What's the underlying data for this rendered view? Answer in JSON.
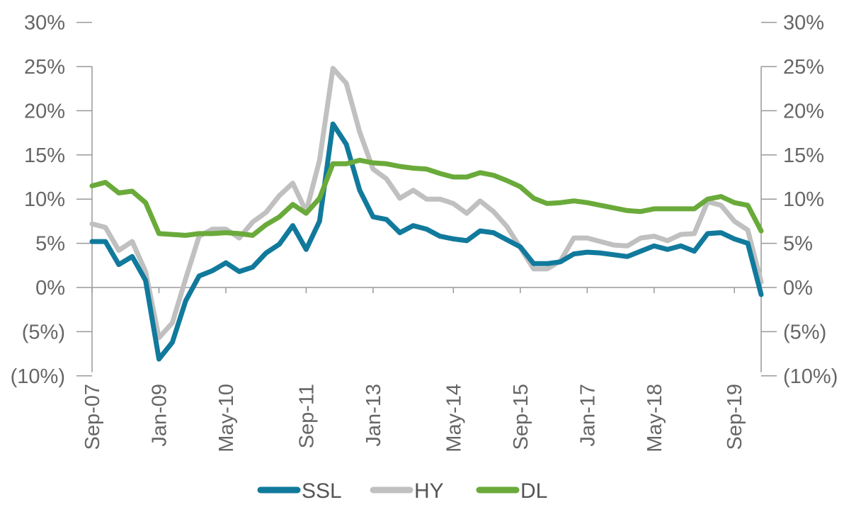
{
  "chart_data": {
    "type": "line",
    "x": [
      "Sep-07",
      "Dec-07",
      "Mar-08",
      "Jun-08",
      "Sep-08",
      "Dec-08",
      "Mar-09",
      "Jun-09",
      "Sep-09",
      "Dec-09",
      "Mar-10",
      "Jun-10",
      "Sep-10",
      "Dec-10",
      "Mar-11",
      "Jun-11",
      "Sep-11",
      "Dec-11",
      "Mar-12",
      "Jun-12",
      "Sep-12",
      "Dec-12",
      "Mar-13",
      "Jun-13",
      "Sep-13",
      "Dec-13",
      "Mar-14",
      "Jun-14",
      "Sep-14",
      "Dec-14",
      "Mar-15",
      "Jun-15",
      "Sep-15",
      "Dec-15",
      "Mar-16",
      "Jun-16",
      "Sep-16",
      "Dec-16",
      "Mar-17",
      "Jun-17",
      "Sep-17",
      "Dec-17",
      "Mar-18",
      "Jun-18",
      "Sep-18",
      "Dec-18",
      "Mar-19",
      "Jun-19",
      "Sep-19",
      "Dec-19",
      "Mar-20"
    ],
    "x_tick_labels": [
      "Sep-07",
      "Jan-09",
      "May-10",
      "Sep-11",
      "Jan-13",
      "May-14",
      "Sep-15",
      "Jan-17",
      "May-18",
      "Sep-19"
    ],
    "x_tick_indices": [
      0,
      5,
      10,
      16,
      21,
      27,
      32,
      37,
      42,
      48
    ],
    "series": [
      {
        "name": "SSL",
        "color": "#117a9c",
        "values": [
          5.2,
          5.2,
          2.6,
          3.5,
          0.8,
          -8.1,
          -6.2,
          -1.5,
          1.3,
          1.9,
          2.8,
          1.8,
          2.3,
          3.9,
          4.9,
          7.0,
          4.3,
          7.5,
          18.5,
          16.2,
          11.0,
          8.0,
          7.7,
          6.2,
          7.0,
          6.6,
          5.8,
          5.5,
          5.3,
          6.4,
          6.2,
          5.4,
          4.6,
          2.7,
          2.7,
          2.9,
          3.8,
          4.0,
          3.9,
          3.7,
          3.5,
          4.1,
          4.7,
          4.3,
          4.7,
          4.1,
          6.1,
          6.2,
          5.5,
          5.0,
          -0.8
        ]
      },
      {
        "name": "HY",
        "color": "#c0c0c0",
        "values": [
          7.2,
          6.8,
          4.2,
          5.2,
          1.8,
          -5.7,
          -4.0,
          1.0,
          5.8,
          6.6,
          6.6,
          5.6,
          7.4,
          8.5,
          10.4,
          11.8,
          8.6,
          14.4,
          24.8,
          23.1,
          17.6,
          13.4,
          12.3,
          10.1,
          11.0,
          10.0,
          10.0,
          9.5,
          8.4,
          9.8,
          8.6,
          6.9,
          4.5,
          2.1,
          2.1,
          3.0,
          5.6,
          5.6,
          5.2,
          4.8,
          4.7,
          5.6,
          5.8,
          5.3,
          6.0,
          6.1,
          9.7,
          9.3,
          7.5,
          6.5,
          0.6
        ]
      },
      {
        "name": "DL",
        "color": "#6aaa3a",
        "values": [
          11.5,
          11.9,
          10.7,
          10.9,
          9.6,
          6.1,
          6.0,
          5.9,
          6.1,
          6.1,
          6.2,
          6.1,
          5.9,
          7.1,
          8.0,
          9.4,
          8.4,
          10.1,
          14.0,
          14.0,
          14.4,
          14.1,
          14.0,
          13.7,
          13.5,
          13.4,
          12.9,
          12.5,
          12.5,
          13.0,
          12.7,
          12.1,
          11.4,
          10.1,
          9.5,
          9.6,
          9.8,
          9.6,
          9.3,
          9.0,
          8.7,
          8.6,
          8.9,
          8.9,
          8.9,
          8.9,
          10.0,
          10.3,
          9.6,
          9.3,
          6.4
        ]
      }
    ],
    "y_tick_labels": [
      "30%",
      "25%",
      "20%",
      "15%",
      "10%",
      "5%",
      "0%",
      "(5%)",
      "(10%)"
    ],
    "y_tick_values": [
      30,
      25,
      20,
      15,
      10,
      5,
      0,
      -5,
      -10
    ],
    "ylim": [
      -10,
      30
    ],
    "grid": false,
    "legend_position": "bottom",
    "secondary_y_axis": true
  }
}
